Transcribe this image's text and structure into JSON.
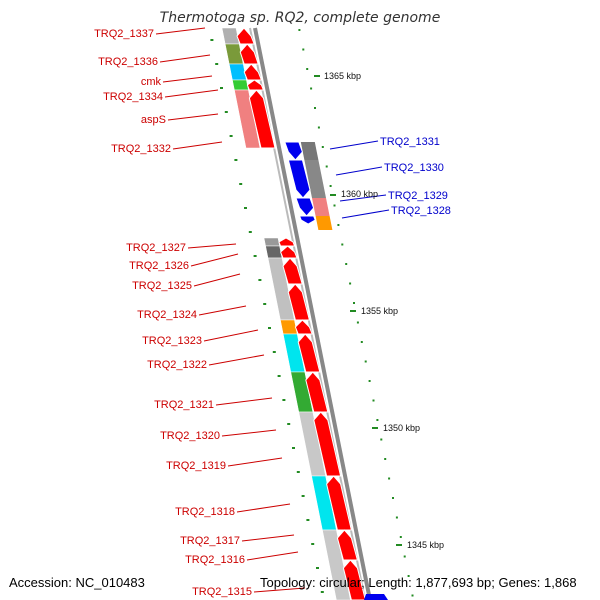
{
  "title": "Thermotoga sp. RQ2, complete genome",
  "footer": {
    "accession": "Accession: NC_010483",
    "topology": "Topology: circular; Length: 1,877,693 bp; Genes: 1,868"
  },
  "colors": {
    "forward": "#ff0000",
    "reverse": "#0000ee",
    "label_forward": "#cc0000",
    "label_reverse": "#0000cc",
    "tick": "#228b22",
    "backbone": "#888888"
  },
  "scale_labels": [
    "1365 kbp",
    "1360 kbp",
    "1355 kbp",
    "1350 kbp",
    "1345 kbp"
  ],
  "forward_labels": [
    "TRQ2_1337",
    "TRQ2_1336",
    "cmk",
    "TRQ2_1334",
    "aspS",
    "TRQ2_1332",
    "TRQ2_1327",
    "TRQ2_1326",
    "TRQ2_1325",
    "TRQ2_1324",
    "TRQ2_1323",
    "TRQ2_1322",
    "TRQ2_1321",
    "TRQ2_1320",
    "TRQ2_1319",
    "TRQ2_1318",
    "TRQ2_1317",
    "TRQ2_1316",
    "TRQ2_1315"
  ],
  "reverse_labels": [
    "TRQ2_1331",
    "TRQ2_1330",
    "TRQ2_1329",
    "TRQ2_1328"
  ]
}
